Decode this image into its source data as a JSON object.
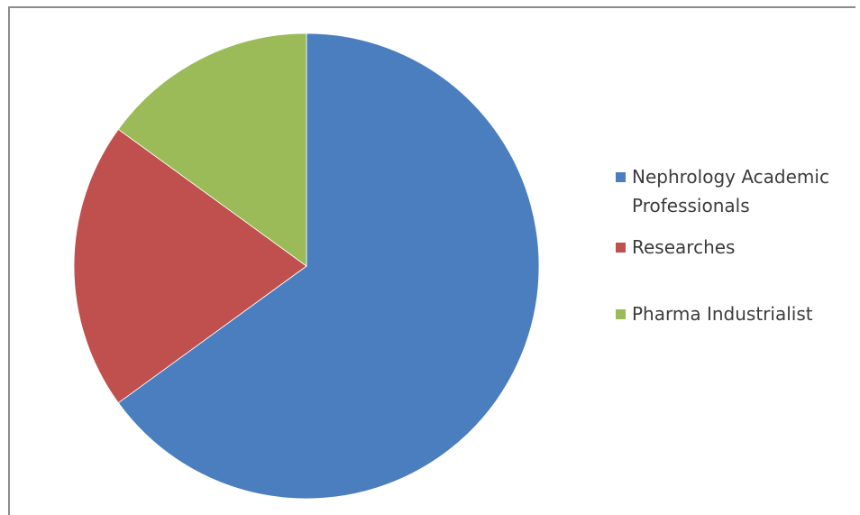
{
  "chart_data": {
    "type": "pie",
    "title": "",
    "series": [
      {
        "values": [
          {
            "label": "Nephrology Academic Professionals",
            "value": 65,
            "color": "#4a7ebf"
          },
          {
            "label": "Researches",
            "value": 20,
            "color": "#c0504d"
          },
          {
            "label": "Pharma Industrialist",
            "value": 15,
            "color": "#9bbb59"
          }
        ]
      }
    ],
    "legend": {
      "position": "right",
      "labels": {
        "item_0_line_1": "Nephrology Academic",
        "item_0_line_2": "Professionals",
        "item_1": "Researches",
        "item_2": "Pharma Industrialist"
      }
    },
    "start_angle": "12 o'clock",
    "direction": "clockwise"
  }
}
